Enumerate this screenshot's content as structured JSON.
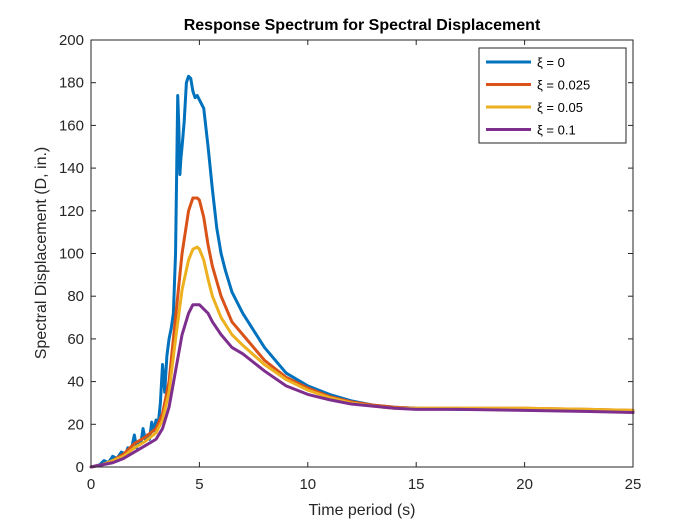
{
  "chart_data": {
    "type": "line",
    "title": "Response Spectrum for Spectral Displacement",
    "xlabel": "Time period (s)",
    "ylabel": "Spectral Displacement (D, in.)",
    "xlim": [
      0,
      25
    ],
    "ylim": [
      0,
      200
    ],
    "xticks": [
      0,
      5,
      10,
      15,
      20,
      25
    ],
    "yticks": [
      0,
      20,
      40,
      60,
      80,
      100,
      120,
      140,
      160,
      180,
      200
    ],
    "grid": false,
    "legend_position": "top-right",
    "series": [
      {
        "name": "ξ = 0",
        "color": "#0072BD",
        "x": [
          0,
          0.4,
          0.6,
          0.8,
          1.0,
          1.2,
          1.4,
          1.6,
          1.7,
          1.8,
          1.9,
          2.0,
          2.1,
          2.2,
          2.3,
          2.4,
          2.5,
          2.6,
          2.7,
          2.8,
          2.9,
          3.0,
          3.1,
          3.2,
          3.3,
          3.4,
          3.5,
          3.6,
          3.7,
          3.8,
          3.9,
          4.0,
          4.05,
          4.1,
          4.15,
          4.2,
          4.3,
          4.4,
          4.5,
          4.6,
          4.7,
          4.8,
          4.9,
          5.0,
          5.2,
          5.4,
          5.6,
          5.8,
          6.0,
          6.2,
          6.5,
          7.0,
          8.0,
          9.0,
          10.0,
          11.0,
          12.0,
          13.0,
          14.0,
          15.0,
          17.0,
          20.0,
          23.0,
          25.0
        ],
        "y": [
          0,
          1,
          3,
          2,
          5,
          4,
          7,
          6,
          9,
          8,
          10,
          15,
          9,
          12,
          11,
          18,
          13,
          15,
          13,
          21,
          17,
          22,
          20,
          30,
          48,
          35,
          52,
          60,
          65,
          72,
          100,
          174,
          160,
          137,
          145,
          150,
          162,
          180,
          183,
          182,
          176,
          173,
          174,
          172,
          168,
          150,
          130,
          112,
          100,
          92,
          82,
          72,
          56,
          44,
          38,
          34,
          31,
          29,
          28,
          27.5,
          27,
          27,
          26.5,
          26
        ]
      },
      {
        "name": "ξ = 0.025",
        "color": "#D95319",
        "x": [
          0,
          0.5,
          1.0,
          1.5,
          2.0,
          2.5,
          3.0,
          3.3,
          3.6,
          3.9,
          4.2,
          4.5,
          4.7,
          4.9,
          5.0,
          5.2,
          5.4,
          5.6,
          6.0,
          6.5,
          7.0,
          8.0,
          9.0,
          10.0,
          11.0,
          12.0,
          13.0,
          14.0,
          15.0,
          17.0,
          20.0,
          23.0,
          25.0
        ],
        "y": [
          0,
          1,
          3,
          6,
          11,
          14,
          18,
          25,
          40,
          70,
          100,
          120,
          126,
          126,
          125,
          117,
          104,
          94,
          80,
          68,
          62,
          50,
          42,
          37,
          33,
          30.5,
          29,
          28,
          27.5,
          27.5,
          27.5,
          27,
          26.5
        ]
      },
      {
        "name": "ξ = 0.05",
        "color": "#EDB120",
        "x": [
          0,
          0.5,
          1.0,
          1.5,
          2.0,
          2.5,
          3.0,
          3.3,
          3.6,
          3.9,
          4.2,
          4.5,
          4.7,
          4.9,
          5.0,
          5.2,
          5.4,
          5.6,
          6.0,
          6.5,
          7.0,
          8.0,
          9.0,
          10.0,
          11.0,
          12.0,
          13.0,
          14.0,
          15.0,
          17.0,
          20.0,
          23.0,
          25.0
        ],
        "y": [
          0,
          1,
          3,
          5,
          9,
          12,
          16,
          22,
          35,
          60,
          83,
          97,
          102,
          103,
          102,
          97,
          88,
          80,
          70,
          62,
          57,
          48,
          41,
          36,
          32.5,
          30,
          28.5,
          27.5,
          27.5,
          27.5,
          27.5,
          27,
          26.5
        ]
      },
      {
        "name": "ξ = 0.1",
        "color": "#7E2F8E",
        "x": [
          0,
          0.5,
          1.0,
          1.5,
          2.0,
          2.5,
          3.0,
          3.3,
          3.6,
          3.9,
          4.2,
          4.5,
          4.7,
          4.9,
          5.0,
          5.2,
          5.4,
          5.6,
          6.0,
          6.5,
          7.0,
          8.0,
          9.0,
          10.0,
          11.0,
          12.0,
          13.0,
          14.0,
          15.0,
          17.0,
          20.0,
          23.0,
          25.0
        ],
        "y": [
          0,
          1,
          2,
          4,
          7,
          10,
          13,
          18,
          28,
          45,
          62,
          72,
          76,
          76,
          76,
          74,
          72,
          68,
          62,
          56,
          53,
          45,
          38,
          34,
          31.5,
          29.5,
          28.5,
          27.5,
          27,
          27,
          26.5,
          26,
          25.5
        ]
      }
    ]
  }
}
